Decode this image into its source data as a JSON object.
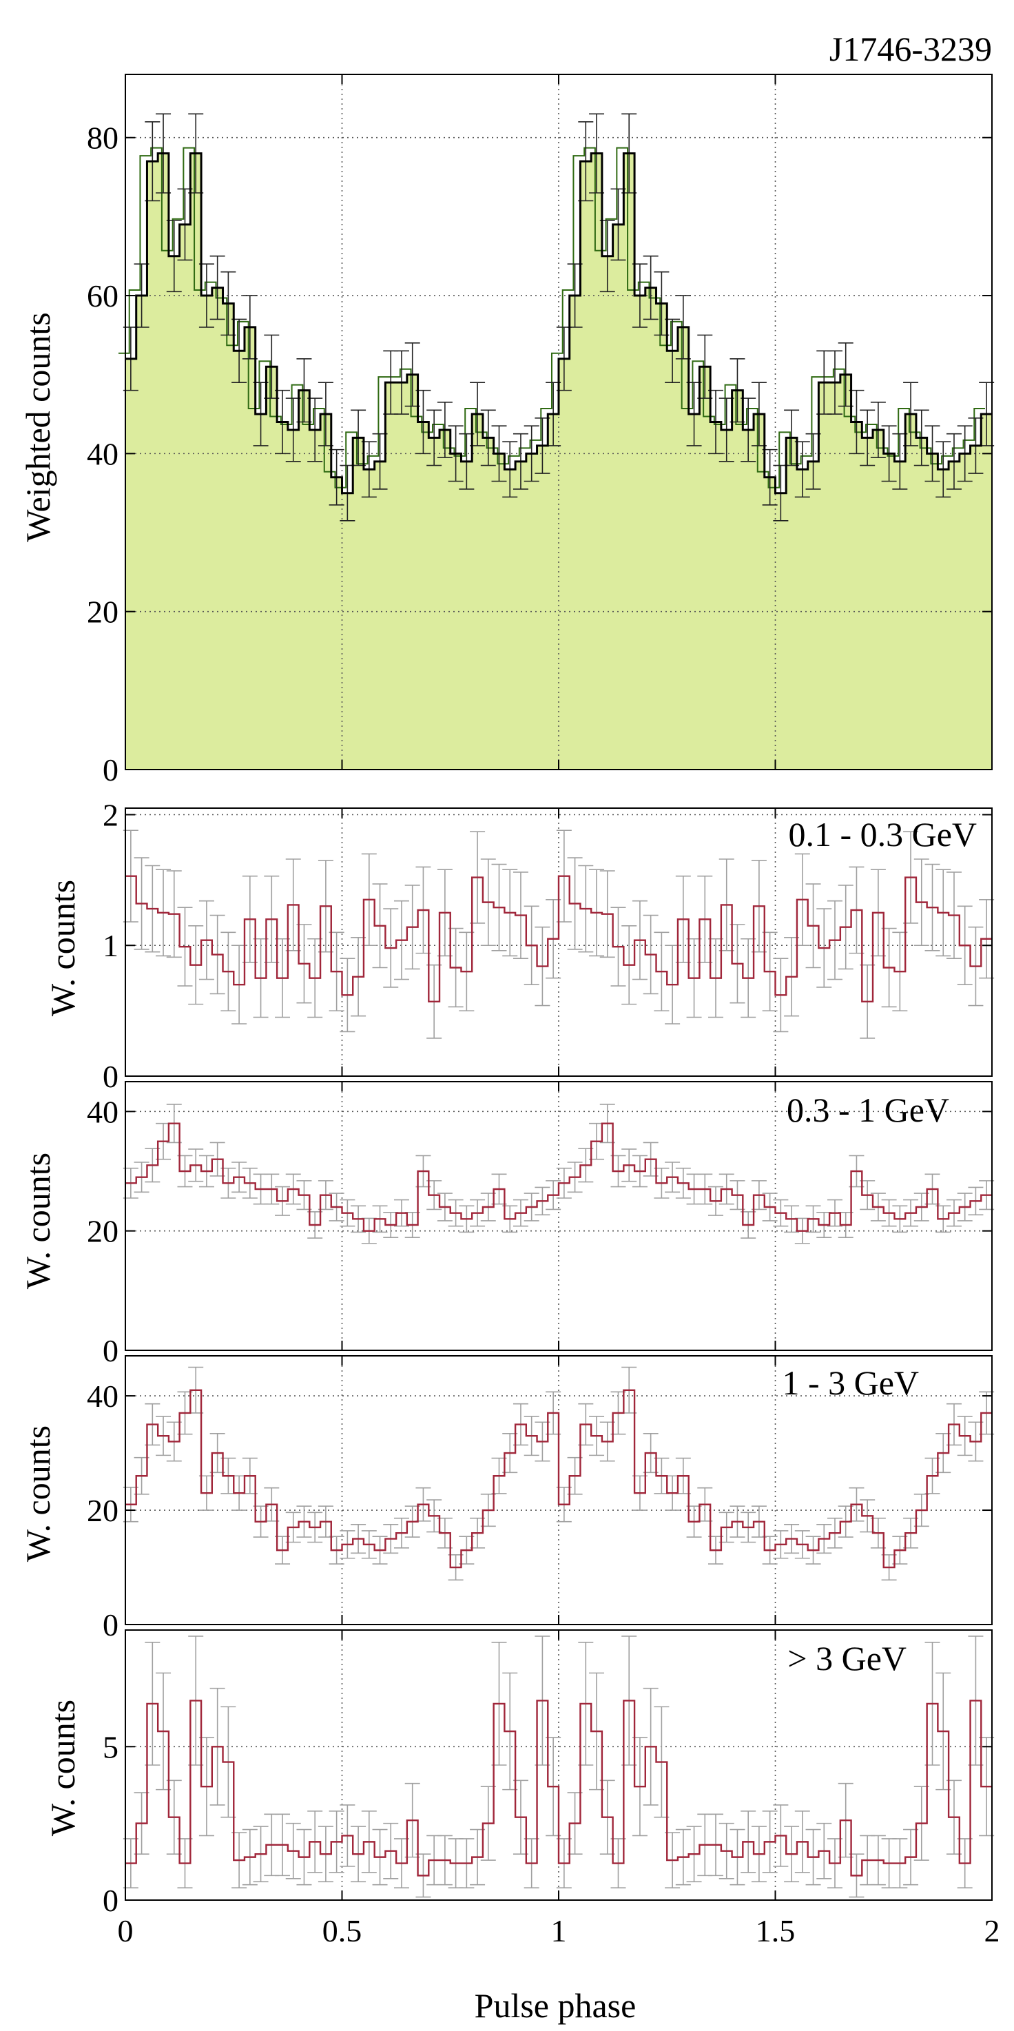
{
  "chart_data": [
    {
      "type": "histogram",
      "title": "J1746-3239",
      "xlabel": "",
      "ylabel": "Weighted counts",
      "xlim": [
        0,
        2
      ],
      "ylim": [
        0,
        88
      ],
      "yticks": [
        0,
        20,
        40,
        60,
        80
      ],
      "xticks": [
        0,
        0.5,
        1,
        1.5,
        2
      ],
      "grid": true,
      "bins_per_cycle": 40,
      "values": [
        52,
        60,
        77,
        78,
        65,
        69,
        78,
        60,
        61,
        59,
        53,
        56,
        45,
        51,
        44,
        43,
        48,
        43,
        45,
        37,
        35,
        42,
        38,
        39,
        49,
        49,
        50,
        44,
        42,
        43,
        40,
        39,
        45,
        42,
        40,
        38,
        39,
        40,
        41,
        45
      ],
      "errors": [
        4,
        4,
        5,
        5,
        4.5,
        4.5,
        5,
        4,
        4,
        4,
        4,
        4,
        4,
        4,
        4,
        4,
        4,
        4,
        4,
        3.5,
        3.5,
        3.5,
        3.5,
        3.5,
        4,
        4,
        4,
        4,
        3.5,
        3.5,
        3.5,
        3.5,
        4,
        3.5,
        3.5,
        3.5,
        3.5,
        3.5,
        3.5,
        4
      ]
    },
    {
      "type": "histogram",
      "title": "0.1 - 0.3 GeV",
      "xlabel": "",
      "ylabel": "W. counts",
      "xlim": [
        0,
        2
      ],
      "ylim": [
        0,
        2.05
      ],
      "yticks": [
        0,
        1,
        2
      ],
      "xticks": [
        0,
        0.5,
        1,
        1.5,
        2
      ],
      "grid": true,
      "bins_per_cycle": 40,
      "values": [
        1.53,
        1.32,
        1.28,
        1.25,
        1.24,
        0.99,
        0.85,
        1.04,
        0.93,
        0.8,
        0.7,
        1.2,
        0.75,
        1.2,
        0.75,
        1.31,
        0.86,
        0.75,
        1.3,
        0.8,
        0.62,
        0.76,
        1.35,
        1.15,
        0.98,
        1.04,
        1.14,
        1.27,
        0.57,
        1.25,
        0.83,
        0.8,
        1.52,
        1.33,
        1.29,
        1.25,
        1.23,
        1.0,
        0.84,
        1.05
      ],
      "errors": [
        0.35,
        0.35,
        0.33,
        0.33,
        0.33,
        0.3,
        0.3,
        0.3,
        0.3,
        0.3,
        0.3,
        0.33,
        0.3,
        0.33,
        0.3,
        0.35,
        0.3,
        0.3,
        0.35,
        0.3,
        0.28,
        0.3,
        0.35,
        0.32,
        0.3,
        0.3,
        0.32,
        0.33,
        0.28,
        0.33,
        0.3,
        0.3,
        0.35,
        0.33,
        0.33,
        0.33,
        0.33,
        0.3,
        0.3,
        0.3
      ]
    },
    {
      "type": "histogram",
      "title": "0.3 - 1 GeV",
      "xlabel": "",
      "ylabel": "W. counts",
      "xlim": [
        0,
        2
      ],
      "ylim": [
        0,
        45
      ],
      "yticks": [
        0,
        20,
        40
      ],
      "xticks": [
        0,
        0.5,
        1,
        1.5,
        2
      ],
      "grid": true,
      "bins_per_cycle": 40,
      "values": [
        28,
        29,
        31,
        35,
        38,
        30,
        31,
        30,
        32,
        28,
        29,
        28,
        27,
        27,
        25,
        27,
        26,
        21,
        26,
        24,
        23,
        22,
        20,
        22,
        21,
        23,
        21,
        30,
        26,
        24,
        23,
        22,
        23,
        24,
        27,
        22,
        23,
        24,
        25,
        26
      ],
      "errors": [
        2.5,
        2.5,
        2.8,
        3,
        3.2,
        2.6,
        2.7,
        2.6,
        2.8,
        2.5,
        2.5,
        2.5,
        2.5,
        2.5,
        2.4,
        2.5,
        2.4,
        2.2,
        2.4,
        2.3,
        2.2,
        2.2,
        2.1,
        2.2,
        2.1,
        2.2,
        2.1,
        2.6,
        2.4,
        2.3,
        2.2,
        2.2,
        2.2,
        2.3,
        2.5,
        2.2,
        2.2,
        2.3,
        2.3,
        2.4
      ]
    },
    {
      "type": "histogram",
      "title": "1 - 3 GeV",
      "xlabel": "",
      "ylabel": "W. counts",
      "xlim": [
        0,
        2
      ],
      "ylim": [
        0,
        47
      ],
      "yticks": [
        0,
        20,
        40
      ],
      "xticks": [
        0,
        0.5,
        1,
        1.5,
        2
      ],
      "grid": true,
      "bins_per_cycle": 40,
      "values": [
        21,
        26,
        35,
        33,
        32,
        37,
        41,
        23,
        30,
        26,
        23,
        26,
        18,
        21,
        13,
        17,
        18,
        17,
        18,
        13,
        14,
        15,
        14,
        13,
        15,
        16,
        18,
        21,
        19,
        16,
        10,
        13,
        16,
        20,
        26,
        30,
        35,
        33,
        32,
        37
      ],
      "errors": [
        3,
        3.2,
        3.6,
        3.4,
        3.4,
        3.7,
        4,
        3,
        3.4,
        3.1,
        3,
        3.1,
        2.7,
        2.9,
        2.4,
        2.6,
        2.7,
        2.6,
        2.7,
        2.4,
        2.4,
        2.5,
        2.4,
        2.4,
        2.5,
        2.6,
        2.7,
        2.9,
        2.8,
        2.6,
        2.2,
        2.4,
        2.6,
        2.8,
        3.1,
        3.4,
        3.6,
        3.4,
        3.4,
        3.7
      ]
    },
    {
      "type": "histogram",
      "title": "> 3 GeV",
      "xlabel": "Pulse phase",
      "ylabel": "W. counts",
      "xlim": [
        0,
        2
      ],
      "ylim": [
        0,
        8.8
      ],
      "yticks": [
        0,
        5
      ],
      "xticks": [
        0,
        0.5,
        1,
        1.5,
        2
      ],
      "grid": true,
      "bins_per_cycle": 40,
      "values": [
        1.2,
        2.5,
        6.4,
        5.5,
        2.7,
        1.2,
        6.5,
        3.7,
        5,
        4.5,
        1.3,
        1.4,
        1.5,
        1.8,
        1.8,
        1.6,
        1.4,
        1.9,
        1.5,
        1.9,
        2.1,
        1.5,
        1.9,
        1.4,
        1.6,
        1.2,
        2.6,
        0.8,
        1.3,
        1.3,
        1.2,
        1.2,
        1.4,
        2.5,
        6.4,
        5.5,
        2.7,
        1.2,
        6.5,
        3.7
      ],
      "errors": [
        0.8,
        1,
        2,
        1.9,
        1.2,
        0.8,
        2.1,
        1.6,
        1.9,
        1.8,
        0.9,
        0.9,
        0.9,
        1,
        1,
        0.9,
        0.9,
        1,
        0.9,
        1,
        1,
        0.9,
        1,
        0.9,
        0.9,
        0.8,
        1.2,
        0.7,
        0.8,
        0.8,
        0.8,
        0.8,
        0.9,
        1.2,
        2,
        1.9,
        1.2,
        0.8,
        2.1,
        1.6
      ]
    }
  ]
}
